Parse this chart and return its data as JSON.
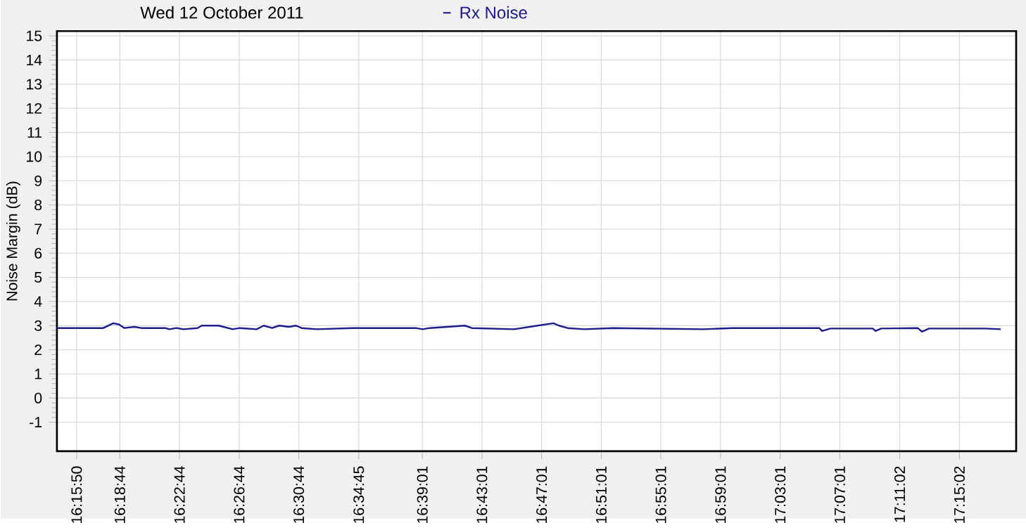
{
  "chart_data": {
    "type": "line",
    "title": "Wed 12 October 2011",
    "ylabel": "Noise Margin (dB)",
    "x": [
      16.2419,
      16.2938,
      16.3048,
      16.3111,
      16.3173,
      16.3284,
      16.3362,
      16.3629,
      16.3676,
      16.3755,
      16.3834,
      16.3991,
      16.4038,
      16.4227,
      16.4384,
      16.4463,
      16.4651,
      16.473,
      16.4824,
      16.4903,
      16.5013,
      16.5091,
      16.5154,
      16.5327,
      16.572,
      16.6428,
      16.6506,
      16.6585,
      16.6978,
      16.7056,
      16.7528,
      16.7968,
      16.8031,
      16.8125,
      16.8314,
      16.8628,
      16.965,
      16.9965,
      17.0939,
      17.0971,
      17.1065,
      17.1537,
      17.1568,
      17.1631,
      17.204,
      17.2087,
      17.2166,
      17.2795,
      17.2968
    ],
    "series": [
      {
        "name": "Rx Noise",
        "color": "#1c1c8a",
        "values": [
          2.9,
          2.9,
          3.1,
          3.05,
          2.9,
          2.95,
          2.9,
          2.9,
          2.85,
          2.9,
          2.85,
          2.9,
          3.0,
          3.0,
          2.85,
          2.9,
          2.85,
          3.0,
          2.9,
          3.0,
          2.95,
          3.0,
          2.9,
          2.85,
          2.9,
          2.9,
          2.85,
          2.9,
          3.0,
          2.9,
          2.85,
          3.1,
          3.0,
          2.9,
          2.85,
          2.9,
          2.85,
          2.9,
          2.9,
          2.78,
          2.88,
          2.88,
          2.78,
          2.88,
          2.9,
          2.75,
          2.88,
          2.88,
          2.85
        ]
      }
    ],
    "xlim": [
      16.2419,
      17.314
    ],
    "ylim": [
      -2.2,
      15.2
    ],
    "xticks": [
      {
        "value": 16.2639,
        "label": "16:15:50"
      },
      {
        "value": 16.3122,
        "label": "16:18:44"
      },
      {
        "value": 16.3789,
        "label": "16:22:44"
      },
      {
        "value": 16.4456,
        "label": "16:26:44"
      },
      {
        "value": 16.5122,
        "label": "16:30:44"
      },
      {
        "value": 16.5792,
        "label": "16:34:45"
      },
      {
        "value": 16.6503,
        "label": "16:39:01"
      },
      {
        "value": 16.7169,
        "label": "16:43:01"
      },
      {
        "value": 16.7836,
        "label": "16:47:01"
      },
      {
        "value": 16.8503,
        "label": "16:51:01"
      },
      {
        "value": 16.9169,
        "label": "16:55:01"
      },
      {
        "value": 16.9836,
        "label": "16:59:01"
      },
      {
        "value": 17.0503,
        "label": "17:03:01"
      },
      {
        "value": 17.1169,
        "label": "17:07:01"
      },
      {
        "value": 17.1839,
        "label": "17:11:02"
      },
      {
        "value": 17.2506,
        "label": "17:15:02"
      }
    ],
    "yticks": [
      -1,
      0,
      1,
      2,
      3,
      4,
      5,
      6,
      7,
      8,
      9,
      10,
      11,
      12,
      13,
      14,
      15
    ],
    "grid": true,
    "legend": "top",
    "marker": "none",
    "line_style": "solid"
  }
}
